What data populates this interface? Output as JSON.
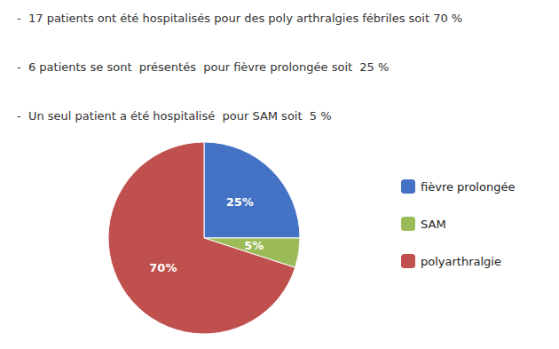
{
  "chart_data": {
    "type": "pie",
    "annotations": [
      "-  17 patients ont été hospitalisés pour des poly arthralgies fébriles soit 70 %",
      "-  6 patients se sont  présentés  pour fièvre prolongée soit  25 %",
      "-  Un seul patient a été hospitalisé  pour SAM soit  5 %"
    ],
    "categories": [
      "fièvre prolongée",
      "SAM",
      "polyarthralgie"
    ],
    "values": [
      25,
      5,
      70
    ],
    "value_labels": [
      "25%",
      "5%",
      "70%"
    ],
    "colors": [
      "#4472C4",
      "#9BBB59",
      "#C0504D"
    ],
    "data_labels": true,
    "legend": "right"
  }
}
